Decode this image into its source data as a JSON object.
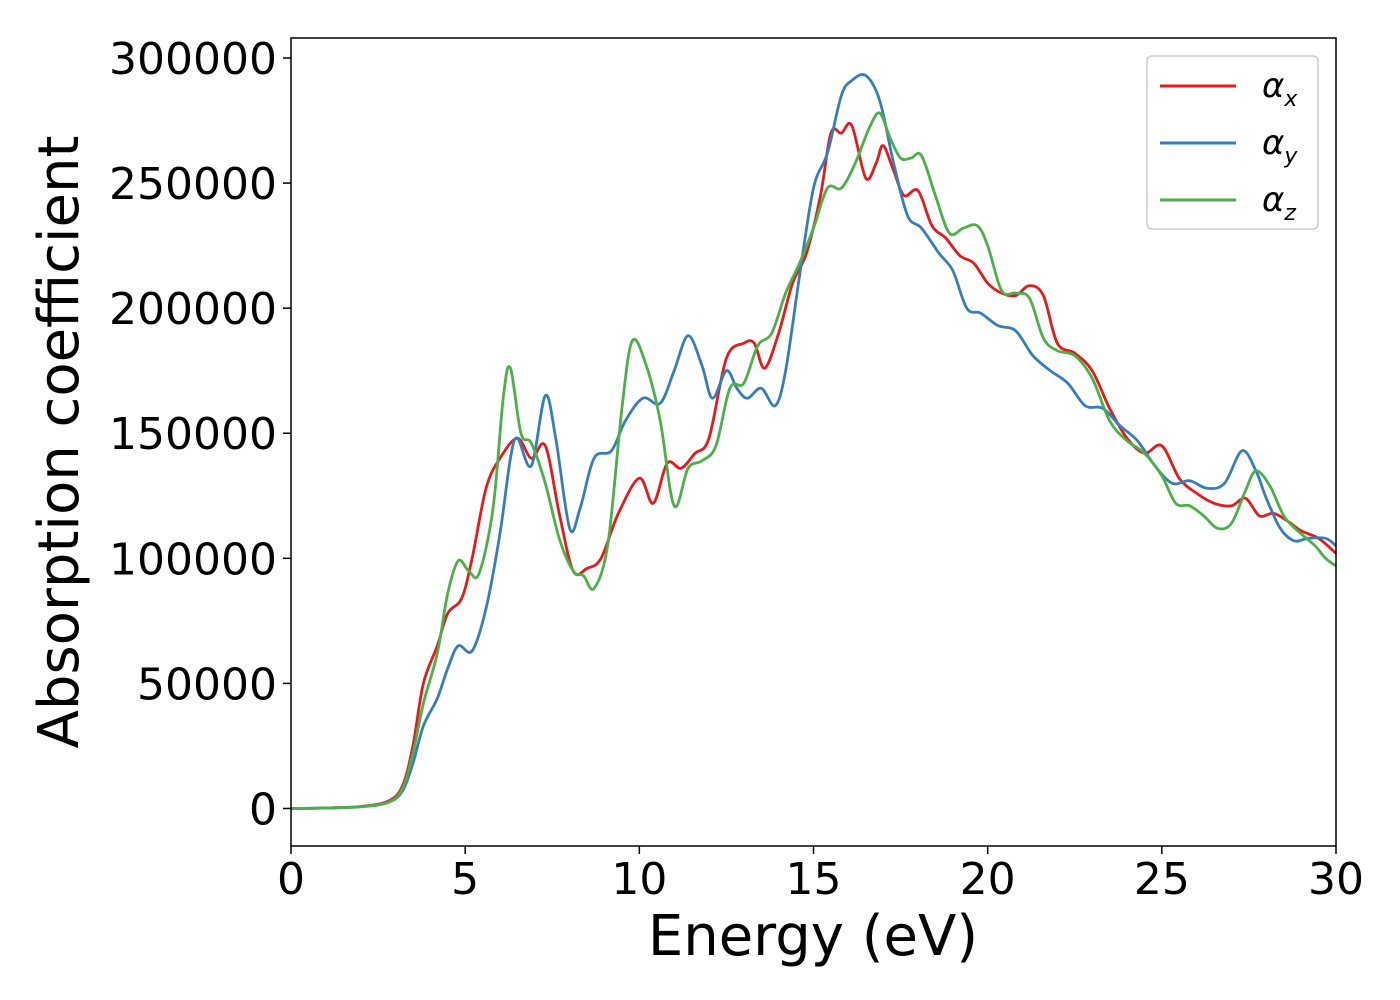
{
  "chart_data": {
    "type": "line",
    "title": "",
    "xlabel": "Energy (eV)",
    "ylabel": "Absorption coefficient",
    "xlim": [
      0,
      30
    ],
    "ylim": [
      -15000,
      308000
    ],
    "x_ticks": [
      0,
      5,
      10,
      15,
      20,
      25,
      30
    ],
    "y_ticks": [
      0,
      50000,
      100000,
      150000,
      200000,
      250000,
      300000
    ],
    "grid": false,
    "legend_position": "top-right",
    "series": [
      {
        "name": "α",
        "subscript": "x",
        "color": "#e41a1c",
        "points": [
          [
            0,
            0
          ],
          [
            1,
            200
          ],
          [
            2,
            800
          ],
          [
            2.8,
            3000
          ],
          [
            3.2,
            9000
          ],
          [
            3.5,
            25000
          ],
          [
            3.8,
            50000
          ],
          [
            4.2,
            65000
          ],
          [
            4.5,
            78000
          ],
          [
            4.9,
            84000
          ],
          [
            5.2,
            100000
          ],
          [
            5.6,
            128000
          ],
          [
            6.0,
            140000
          ],
          [
            6.5,
            148000
          ],
          [
            6.9,
            140000
          ],
          [
            7.3,
            145000
          ],
          [
            7.7,
            118000
          ],
          [
            8.1,
            95000
          ],
          [
            8.5,
            96000
          ],
          [
            8.9,
            100000
          ],
          [
            9.4,
            118000
          ],
          [
            10.0,
            132000
          ],
          [
            10.4,
            122000
          ],
          [
            10.8,
            138000
          ],
          [
            11.2,
            136000
          ],
          [
            11.6,
            142000
          ],
          [
            12.0,
            148000
          ],
          [
            12.5,
            180000
          ],
          [
            13.0,
            186000
          ],
          [
            13.3,
            186000
          ],
          [
            13.6,
            176000
          ],
          [
            14.0,
            190000
          ],
          [
            14.4,
            210000
          ],
          [
            14.8,
            222000
          ],
          [
            15.2,
            245000
          ],
          [
            15.5,
            270000
          ],
          [
            15.8,
            270000
          ],
          [
            16.1,
            273000
          ],
          [
            16.5,
            252000
          ],
          [
            16.8,
            258000
          ],
          [
            17.0,
            265000
          ],
          [
            17.3,
            255000
          ],
          [
            17.6,
            245000
          ],
          [
            18.0,
            247000
          ],
          [
            18.4,
            233000
          ],
          [
            18.8,
            228000
          ],
          [
            19.2,
            221000
          ],
          [
            19.6,
            218000
          ],
          [
            20.0,
            210000
          ],
          [
            20.4,
            206000
          ],
          [
            20.8,
            205000
          ],
          [
            21.2,
            209000
          ],
          [
            21.6,
            205000
          ],
          [
            22.0,
            186000
          ],
          [
            22.5,
            182000
          ],
          [
            23.0,
            175000
          ],
          [
            23.5,
            160000
          ],
          [
            24.0,
            148000
          ],
          [
            24.5,
            142000
          ],
          [
            25.0,
            145000
          ],
          [
            25.5,
            132000
          ],
          [
            26.0,
            126000
          ],
          [
            26.5,
            122000
          ],
          [
            27.0,
            121000
          ],
          [
            27.4,
            124000
          ],
          [
            27.8,
            117000
          ],
          [
            28.2,
            118000
          ],
          [
            28.6,
            115000
          ],
          [
            29.0,
            111000
          ],
          [
            29.5,
            108000
          ],
          [
            30.0,
            102000
          ]
        ]
      },
      {
        "name": "α",
        "subscript": "y",
        "color": "#377eb8",
        "points": [
          [
            0,
            0
          ],
          [
            1,
            200
          ],
          [
            2,
            700
          ],
          [
            2.8,
            2500
          ],
          [
            3.2,
            7000
          ],
          [
            3.5,
            18000
          ],
          [
            3.8,
            33000
          ],
          [
            4.2,
            44000
          ],
          [
            4.5,
            56000
          ],
          [
            4.8,
            65000
          ],
          [
            5.2,
            63000
          ],
          [
            5.6,
            80000
          ],
          [
            6.0,
            110000
          ],
          [
            6.3,
            140000
          ],
          [
            6.5,
            148000
          ],
          [
            6.9,
            137000
          ],
          [
            7.3,
            165000
          ],
          [
            7.6,
            148000
          ],
          [
            8.0,
            112000
          ],
          [
            8.3,
            120000
          ],
          [
            8.7,
            140000
          ],
          [
            9.2,
            143000
          ],
          [
            9.6,
            155000
          ],
          [
            10.1,
            164000
          ],
          [
            10.6,
            162000
          ],
          [
            11.0,
            175000
          ],
          [
            11.4,
            189000
          ],
          [
            11.8,
            177000
          ],
          [
            12.1,
            164000
          ],
          [
            12.5,
            175000
          ],
          [
            12.8,
            168000
          ],
          [
            13.1,
            164000
          ],
          [
            13.5,
            168000
          ],
          [
            13.9,
            161000
          ],
          [
            14.2,
            175000
          ],
          [
            14.6,
            213000
          ],
          [
            15.0,
            248000
          ],
          [
            15.4,
            262000
          ],
          [
            15.8,
            285000
          ],
          [
            16.1,
            291000
          ],
          [
            16.5,
            293000
          ],
          [
            16.9,
            283000
          ],
          [
            17.3,
            258000
          ],
          [
            17.7,
            237000
          ],
          [
            18.1,
            232000
          ],
          [
            18.6,
            222000
          ],
          [
            19.0,
            215000
          ],
          [
            19.4,
            200000
          ],
          [
            19.8,
            198000
          ],
          [
            20.3,
            193000
          ],
          [
            20.8,
            191000
          ],
          [
            21.3,
            181000
          ],
          [
            21.8,
            175000
          ],
          [
            22.3,
            170000
          ],
          [
            22.8,
            161000
          ],
          [
            23.3,
            160000
          ],
          [
            23.8,
            153000
          ],
          [
            24.3,
            147000
          ],
          [
            24.8,
            137000
          ],
          [
            25.3,
            130000
          ],
          [
            25.8,
            131000
          ],
          [
            26.3,
            128000
          ],
          [
            26.8,
            130000
          ],
          [
            27.3,
            143000
          ],
          [
            27.7,
            135000
          ],
          [
            28.0,
            124000
          ],
          [
            28.4,
            112000
          ],
          [
            28.8,
            107000
          ],
          [
            29.2,
            108000
          ],
          [
            29.7,
            108000
          ],
          [
            30.0,
            105000
          ]
        ]
      },
      {
        "name": "α",
        "subscript": "z",
        "color": "#4daf4a",
        "points": [
          [
            0,
            0
          ],
          [
            1,
            200
          ],
          [
            2,
            700
          ],
          [
            2.8,
            2500
          ],
          [
            3.2,
            8000
          ],
          [
            3.5,
            22000
          ],
          [
            3.8,
            42000
          ],
          [
            4.2,
            62000
          ],
          [
            4.5,
            86000
          ],
          [
            4.8,
            99000
          ],
          [
            5.1,
            95000
          ],
          [
            5.4,
            94000
          ],
          [
            5.8,
            120000
          ],
          [
            6.1,
            165000
          ],
          [
            6.3,
            176000
          ],
          [
            6.6,
            150000
          ],
          [
            6.9,
            146000
          ],
          [
            7.3,
            130000
          ],
          [
            7.7,
            108000
          ],
          [
            8.1,
            95000
          ],
          [
            8.4,
            93000
          ],
          [
            8.7,
            88000
          ],
          [
            9.1,
            106000
          ],
          [
            9.5,
            160000
          ],
          [
            9.8,
            187000
          ],
          [
            10.2,
            177000
          ],
          [
            10.6,
            155000
          ],
          [
            11.0,
            121000
          ],
          [
            11.4,
            136000
          ],
          [
            11.8,
            139000
          ],
          [
            12.2,
            145000
          ],
          [
            12.6,
            168000
          ],
          [
            13.0,
            170000
          ],
          [
            13.4,
            185000
          ],
          [
            13.8,
            190000
          ],
          [
            14.2,
            206000
          ],
          [
            14.6,
            218000
          ],
          [
            15.0,
            232000
          ],
          [
            15.4,
            248000
          ],
          [
            15.8,
            248000
          ],
          [
            16.2,
            258000
          ],
          [
            16.6,
            272000
          ],
          [
            16.9,
            278000
          ],
          [
            17.2,
            268000
          ],
          [
            17.5,
            260000
          ],
          [
            17.8,
            260000
          ],
          [
            18.1,
            261000
          ],
          [
            18.5,
            245000
          ],
          [
            18.9,
            230000
          ],
          [
            19.3,
            232000
          ],
          [
            19.7,
            233000
          ],
          [
            20.0,
            225000
          ],
          [
            20.4,
            207000
          ],
          [
            20.8,
            206000
          ],
          [
            21.2,
            204000
          ],
          [
            21.6,
            188000
          ],
          [
            22.0,
            183000
          ],
          [
            22.5,
            181000
          ],
          [
            23.0,
            172000
          ],
          [
            23.5,
            155000
          ],
          [
            24.0,
            147000
          ],
          [
            24.5,
            142000
          ],
          [
            25.0,
            133000
          ],
          [
            25.4,
            122000
          ],
          [
            25.8,
            121000
          ],
          [
            26.2,
            117000
          ],
          [
            26.6,
            112000
          ],
          [
            27.0,
            114000
          ],
          [
            27.4,
            127000
          ],
          [
            27.7,
            135000
          ],
          [
            28.1,
            129000
          ],
          [
            28.5,
            117000
          ],
          [
            28.9,
            111000
          ],
          [
            29.4,
            105000
          ],
          [
            29.7,
            100000
          ],
          [
            30.0,
            97000
          ]
        ]
      }
    ]
  }
}
